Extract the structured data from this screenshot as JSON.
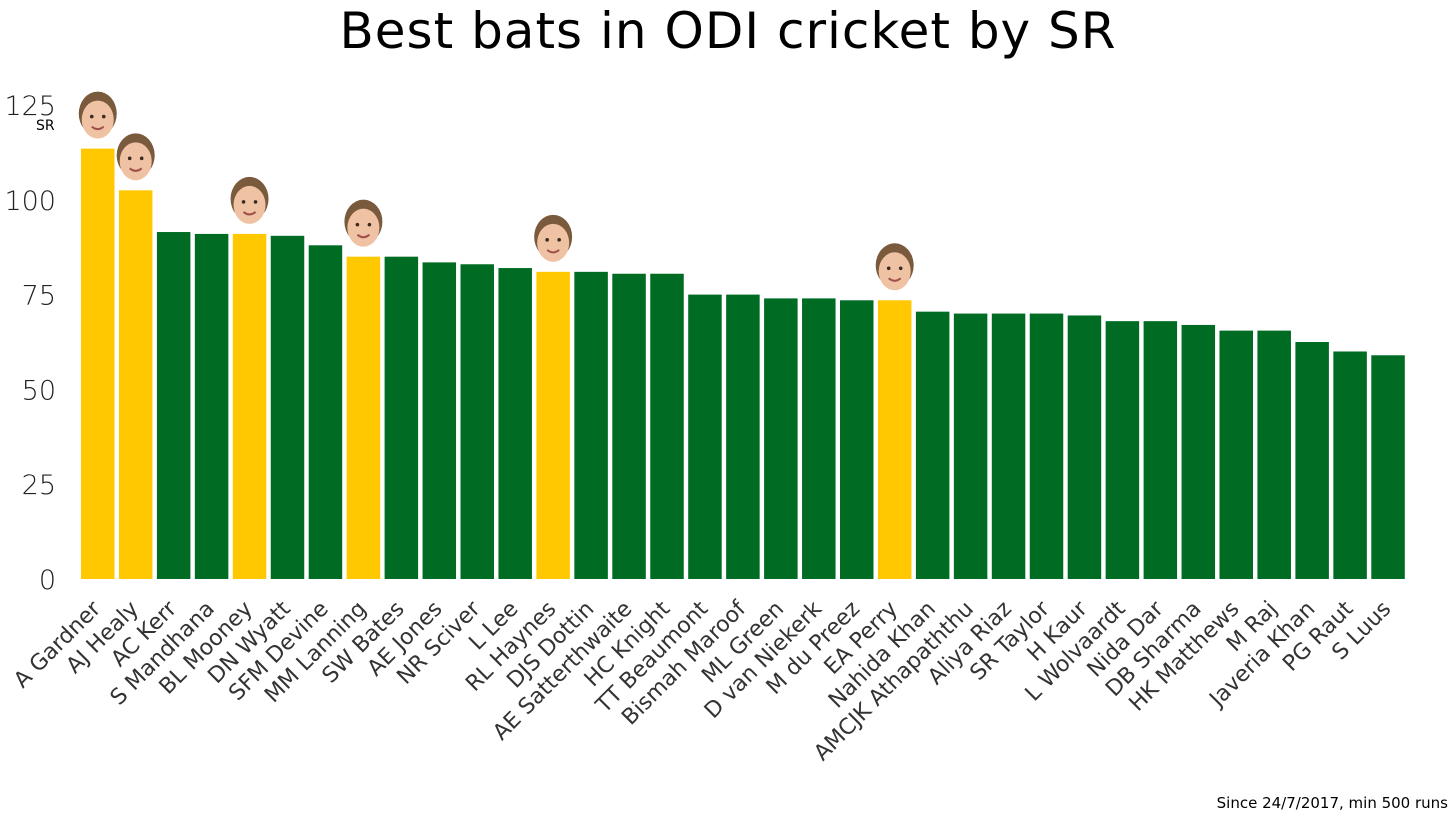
{
  "chart_data": {
    "type": "bar",
    "title": "Best bats in ODI cricket by SR",
    "xlabel": "",
    "ylabel": "SR",
    "ylim": [
      0,
      125
    ],
    "yticks": [
      0,
      25,
      50,
      75,
      100,
      125
    ],
    "grid": false,
    "footnote": "Since 24/7/2017, min 500 runs",
    "colors": {
      "highlight": "#ffc800",
      "default": "#006b22"
    },
    "categories": [
      "A Gardner",
      "AJ Healy",
      "AC Kerr",
      "S Mandhana",
      "BL Mooney",
      "DN Wyatt",
      "SFM Devine",
      "MM Lanning",
      "SW Bates",
      "AE Jones",
      "NR Sciver",
      "L Lee",
      "RL Haynes",
      "DJS Dottin",
      "AE Satterthwaite",
      "HC Knight",
      "TT Beaumont",
      "Bismah Maroof",
      "ML Green",
      "D van Niekerk",
      "M du Preez",
      "EA Perry",
      "Nahida Khan",
      "AMCJK Athapaththu",
      "Aliya Riaz",
      "SR Taylor",
      "H Kaur",
      "L Wolvaardt",
      "Nida Dar",
      "DB Sharma",
      "HK Matthews",
      "M Raj",
      "Javeria Khan",
      "PG Raut",
      "S Luus"
    ],
    "values": [
      113.5,
      102.5,
      91.5,
      91,
      91,
      90.5,
      88,
      85,
      85,
      83.5,
      83,
      82,
      81,
      81,
      80.5,
      80.5,
      75,
      75,
      74,
      74,
      73.5,
      73.5,
      70.5,
      70,
      70,
      70,
      69.5,
      68,
      68,
      67,
      65.5,
      65.5,
      62.5,
      60,
      59
    ],
    "highlighted": [
      true,
      true,
      false,
      false,
      true,
      false,
      false,
      true,
      false,
      false,
      false,
      false,
      true,
      false,
      false,
      false,
      false,
      false,
      false,
      false,
      false,
      true,
      false,
      false,
      false,
      false,
      false,
      false,
      false,
      false,
      false,
      false,
      false,
      false,
      false
    ]
  }
}
